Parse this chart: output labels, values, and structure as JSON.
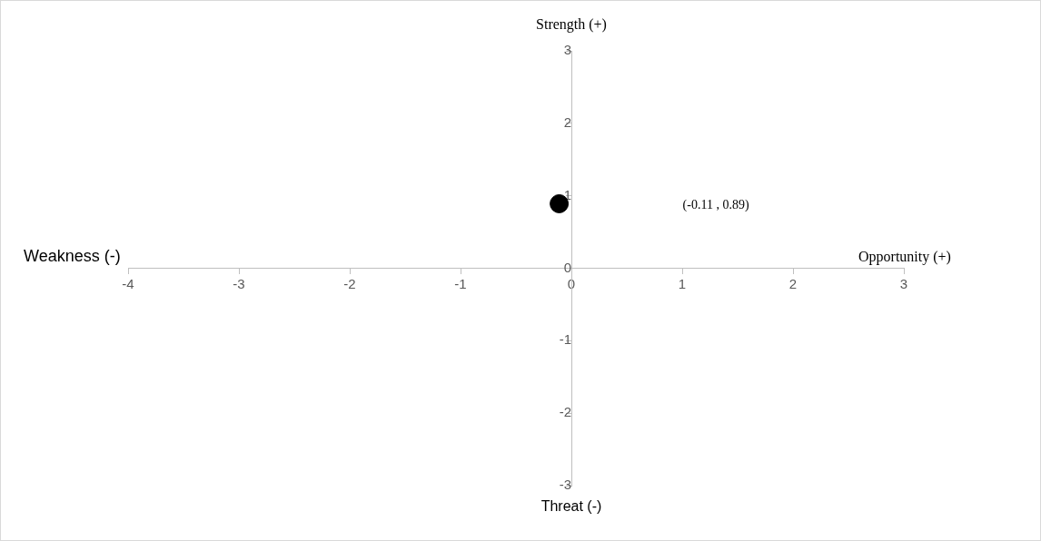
{
  "chart_data": {
    "type": "scatter",
    "x": [
      -0.11
    ],
    "values": [
      0.89
    ],
    "color": "#000000",
    "marker": "circle",
    "xlim": [
      -4,
      3
    ],
    "xticks": [
      -4,
      -3,
      -2,
      -1,
      0,
      1,
      2,
      3
    ],
    "ylim": [
      -3,
      3
    ],
    "yticks": [
      -3,
      -2,
      -1,
      0,
      1,
      2,
      3
    ],
    "grid": false,
    "legend": false,
    "annotations": [
      "Strength (+)",
      "Threat (-)",
      "Weakness (-)",
      "Opportunity (+)",
      "(-0.11 , 0.89)"
    ]
  }
}
